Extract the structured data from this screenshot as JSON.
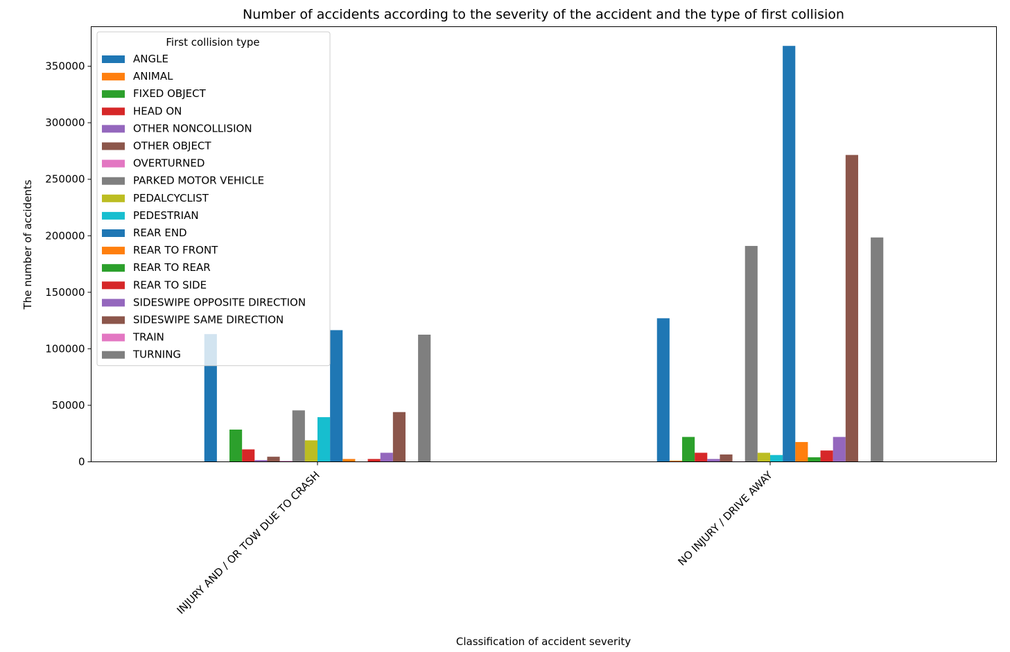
{
  "chart_data": {
    "type": "bar",
    "title": "Number of accidents according to the severity of the accident and the type of first collision",
    "xlabel": "Classification of accident severity",
    "ylabel": "The number of accidents",
    "categories": [
      "INJURY AND / OR TOW DUE TO CRASH",
      "NO INJURY / DRIVE AWAY"
    ],
    "ylim": [
      0,
      385000
    ],
    "yticks": [
      0,
      50000,
      100000,
      150000,
      200000,
      250000,
      300000,
      350000
    ],
    "grid": false,
    "legend": {
      "title": "First collision type",
      "placement": "upper-left"
    },
    "series": [
      {
        "name": "ANGLE",
        "color": "#1f77b4",
        "values": [
          113000,
          127000
        ]
      },
      {
        "name": "ANIMAL",
        "color": "#ff7f0e",
        "values": [
          100,
          1000
        ]
      },
      {
        "name": "FIXED OBJECT",
        "color": "#2ca02c",
        "values": [
          28500,
          22000
        ]
      },
      {
        "name": "HEAD ON",
        "color": "#d62728",
        "values": [
          11000,
          8000
        ]
      },
      {
        "name": "OTHER NONCOLLISION",
        "color": "#9467bd",
        "values": [
          1500,
          2500
        ]
      },
      {
        "name": "OTHER OBJECT",
        "color": "#8c564b",
        "values": [
          4500,
          6500
        ]
      },
      {
        "name": "OVERTURNED",
        "color": "#e377c2",
        "values": [
          800,
          400
        ]
      },
      {
        "name": "PARKED MOTOR VEHICLE",
        "color": "#7f7f7f",
        "values": [
          45500,
          191000
        ]
      },
      {
        "name": "PEDALCYCLIST",
        "color": "#bcbd22",
        "values": [
          19000,
          8000
        ]
      },
      {
        "name": "PEDESTRIAN",
        "color": "#17becf",
        "values": [
          39500,
          6000
        ]
      },
      {
        "name": "REAR END",
        "color": "#1f77b4",
        "values": [
          116500,
          368000
        ]
      },
      {
        "name": "REAR TO FRONT",
        "color": "#ff7f0e",
        "values": [
          2500,
          17500
        ]
      },
      {
        "name": "REAR TO REAR",
        "color": "#2ca02c",
        "values": [
          200,
          4000
        ]
      },
      {
        "name": "REAR TO SIDE",
        "color": "#d62728",
        "values": [
          2500,
          10000
        ]
      },
      {
        "name": "SIDESWIPE OPPOSITE DIRECTION",
        "color": "#9467bd",
        "values": [
          8000,
          22000
        ]
      },
      {
        "name": "SIDESWIPE SAME DIRECTION",
        "color": "#8c564b",
        "values": [
          44000,
          271500
        ]
      },
      {
        "name": "TRAIN",
        "color": "#e377c2",
        "values": [
          0,
          0
        ]
      },
      {
        "name": "TURNING",
        "color": "#7f7f7f",
        "values": [
          112500,
          198500
        ]
      }
    ]
  }
}
